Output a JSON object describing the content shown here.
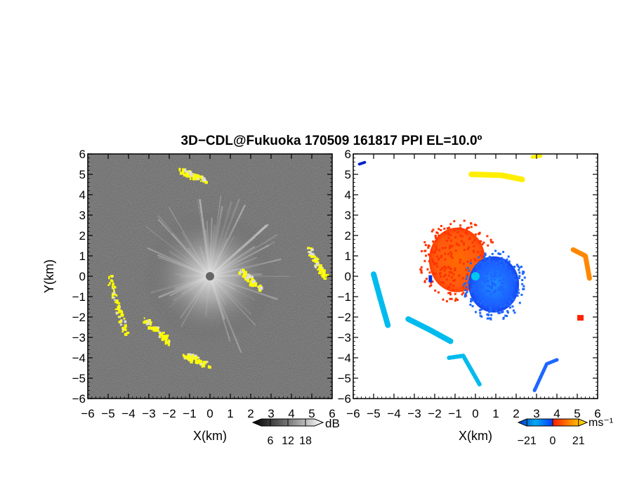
{
  "title": "3D−CDL@Fukuoka 170509 161817 PPI EL=10.0º",
  "chart_data": [
    {
      "type": "heatmap",
      "xlabel": "X(km)",
      "ylabel": "Y(km)",
      "xlim": [
        -6,
        6
      ],
      "ylim": [
        -6,
        6
      ],
      "xticks": [
        "−6",
        "−5",
        "−4",
        "−3",
        "−2",
        "−1",
        "0",
        "1",
        "2",
        "3",
        "4",
        "5",
        "6"
      ],
      "yticks": [
        "−6",
        "−5",
        "−4",
        "−3",
        "−2",
        "−1",
        "0",
        "1",
        "2",
        "3",
        "4",
        "5",
        "6"
      ],
      "background": "#2b2b2b",
      "highlight_color": "#ffff00",
      "colorbar": {
        "unit": "dB",
        "ticks": [
          "6",
          "12",
          "18"
        ],
        "range": [
          0,
          24
        ]
      },
      "echo_bands": [
        {
          "x": [
            -1.5,
            -0.3
          ],
          "y": [
            5.2,
            4.8
          ]
        },
        {
          "x": [
            -5.0,
            -4.2
          ],
          "y": [
            0.1,
            -2.8
          ]
        },
        {
          "x": [
            -3.3,
            -2.0
          ],
          "y": [
            -2.1,
            -3.2
          ]
        },
        {
          "x": [
            -1.3,
            -0.2
          ],
          "y": [
            -3.8,
            -4.3
          ]
        },
        {
          "x": [
            4.8,
            5.6
          ],
          "y": [
            1.4,
            0.0
          ]
        },
        {
          "x": [
            1.5,
            2.4
          ],
          "y": [
            0.3,
            -0.6
          ]
        }
      ]
    },
    {
      "type": "heatmap",
      "xlabel": "X(km)",
      "xlim": [
        -6,
        6
      ],
      "ylim": [
        -6,
        6
      ],
      "xticks": [
        "−6",
        "−5",
        "−4",
        "−3",
        "−2",
        "−1",
        "0",
        "1",
        "2",
        "3",
        "4",
        "5",
        "6"
      ],
      "yticks": [
        "−6",
        "−5",
        "−4",
        "−3",
        "−2",
        "−1",
        "0",
        "1",
        "2",
        "3",
        "4",
        "5",
        "6"
      ],
      "colorbar": {
        "unit": "ms⁻¹",
        "ticks": [
          "−21",
          "0",
          "21"
        ],
        "range": [
          -28,
          28
        ]
      },
      "colors": [
        "#0022cc",
        "#1e66ff",
        "#00bbee",
        "#ff3300",
        "#ff8800",
        "#ffee00"
      ]
    }
  ]
}
